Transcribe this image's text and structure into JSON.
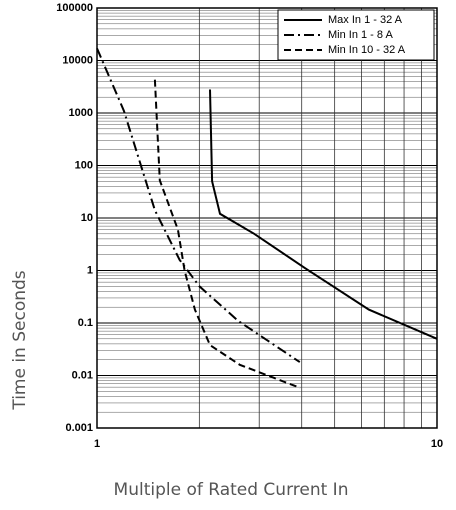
{
  "chart_data": {
    "type": "line",
    "x_label": "Multiple of Rated Current In",
    "y_label": "Time in Seconds",
    "x_log": true,
    "y_log": true,
    "grid": true,
    "minor_grid": true,
    "legend_position": "upper right",
    "xlim": [
      1,
      10
    ],
    "xticks": [
      1,
      10
    ],
    "ylim": [
      0.001,
      100000
    ],
    "yticks": [
      0.001,
      0.01,
      0.1,
      1,
      10,
      100,
      1000,
      10000,
      100000
    ],
    "series": [
      {
        "name": "Max In 1 - 32 A",
        "color": "#000000",
        "dash": "solid",
        "x": [
          2.15,
          2.18,
          2.3,
          2.9,
          4.1,
          6.3,
          10
        ],
        "values": [
          2800,
          50,
          12,
          5,
          1.1,
          0.18,
          0.05
        ]
      },
      {
        "name": "Min In 1 - 8 A",
        "color": "#000000",
        "dash": "dashdot",
        "x": [
          1,
          1.2,
          1.48,
          1.75,
          2,
          2.6,
          3.95
        ],
        "values": [
          17000,
          1100,
          14,
          1.6,
          0.5,
          0.11,
          0.018
        ]
      },
      {
        "name": "Min In 10 - 32 A",
        "color": "#000000",
        "dash": "dashed",
        "x": [
          1.48,
          1.53,
          1.73,
          1.81,
          1.94,
          2.15,
          2.63,
          3.96
        ],
        "values": [
          4300,
          52,
          6,
          1,
          0.18,
          0.038,
          0.016,
          0.0058
        ]
      }
    ]
  }
}
